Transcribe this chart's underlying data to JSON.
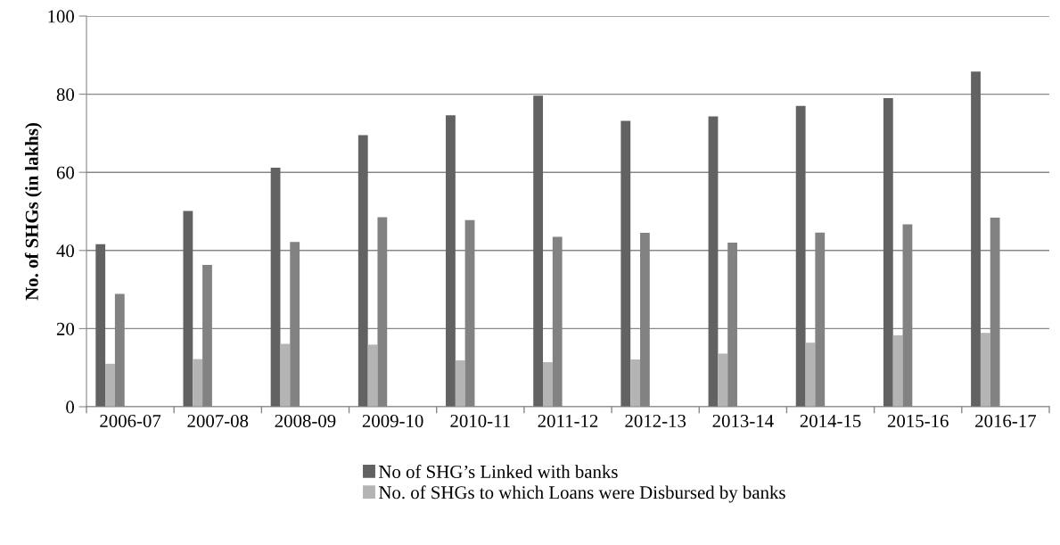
{
  "chart_data": {
    "type": "bar",
    "ylabel": "No. of SHGs (in lakhs)",
    "categories": [
      "2006-07",
      "2007-08",
      "2008-09",
      "2009-10",
      "2010-11",
      "2011-12",
      "2012-13",
      "2013-14",
      "2014-15",
      "2015-16",
      "2016-17"
    ],
    "series": [
      {
        "name": "No of SHG’s Linked with banks",
        "color": "#626262",
        "values": [
          41.6,
          50.1,
          61.2,
          69.5,
          74.6,
          79.6,
          73.2,
          74.3,
          77.0,
          79.0,
          85.8
        ]
      },
      {
        "name": "No. of SHGs to which Loans were Disbursed by banks",
        "color": "#b4b4b4",
        "values": [
          11.0,
          12.2,
          16.1,
          15.9,
          11.9,
          11.4,
          12.1,
          13.6,
          16.4,
          18.3,
          18.9
        ]
      },
      {
        "color": "#828282",
        "values": [
          28.9,
          36.3,
          42.2,
          48.5,
          47.8,
          43.5,
          44.5,
          42.0,
          44.6,
          46.7,
          48.4
        ]
      }
    ],
    "ylim": [
      0,
      100
    ],
    "yticks": [
      0,
      20,
      40,
      60,
      80,
      100
    ],
    "grid": "y",
    "legend": "bottom"
  }
}
